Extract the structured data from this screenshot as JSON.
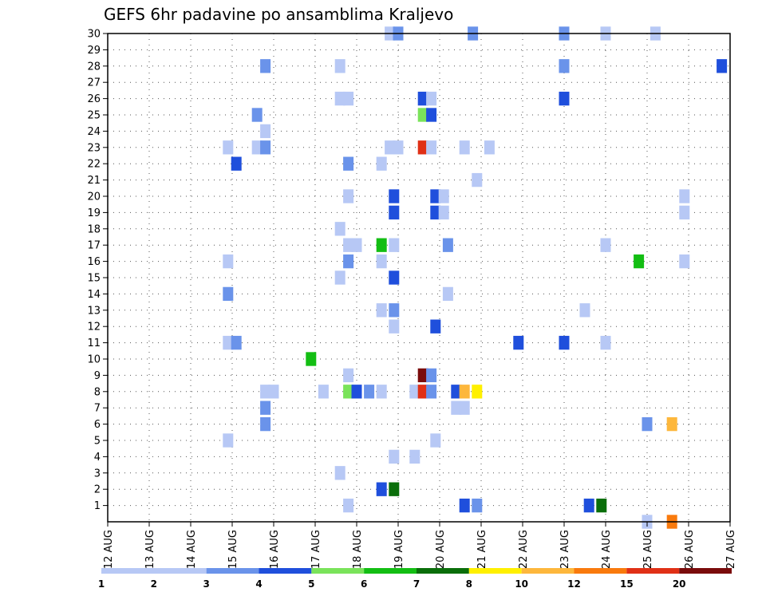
{
  "chart_data": {
    "type": "heatmap",
    "title": "GEFS 6hr padavine po ansamblima Kraljevo",
    "xlabel": "",
    "ylabel": "",
    "x_tick_labels": [
      "12 AUG",
      "13 AUG",
      "14 AUG",
      "15 AUG",
      "16 AUG",
      "17 AUG",
      "18 AUG",
      "19 AUG",
      "20 AUG",
      "21 AUG",
      "22 AUG",
      "23 AUG",
      "24 AUG",
      "25 AUG",
      "26 AUG",
      "27 AUG"
    ],
    "y_tick_labels": [
      "1",
      "2",
      "3",
      "4",
      "5",
      "6",
      "7",
      "8",
      "9",
      "10",
      "11",
      "12",
      "13",
      "14",
      "15",
      "16",
      "17",
      "18",
      "19",
      "20",
      "21",
      "22",
      "23",
      "24",
      "25",
      "26",
      "27",
      "28",
      "29",
      "30"
    ],
    "y_range": [
      0,
      30
    ],
    "x_range_days": [
      12,
      27
    ],
    "grid": true,
    "colorbar": {
      "colors": [
        "#b7c8f5",
        "#6a93ea",
        "#1f4fdc",
        "#7ae35a",
        "#13be13",
        "#0a6e0a",
        "#fff000",
        "#fdb73c",
        "#f97a0d",
        "#e03016",
        "#7a0b0b"
      ],
      "labels": [
        "1",
        "2",
        "3",
        "4",
        "5",
        "6",
        "7",
        "8",
        "10",
        "12",
        "15",
        "20"
      ]
    },
    "cells": [
      {
        "x": 18.8,
        "y": 30,
        "c": 0
      },
      {
        "x": 19.0,
        "y": 30,
        "c": 1
      },
      {
        "x": 20.8,
        "y": 30,
        "c": 1
      },
      {
        "x": 23.0,
        "y": 30,
        "c": 1
      },
      {
        "x": 24.0,
        "y": 30,
        "c": 0
      },
      {
        "x": 25.2,
        "y": 30,
        "c": 0
      },
      {
        "x": 15.8,
        "y": 28,
        "c": 1
      },
      {
        "x": 17.6,
        "y": 28,
        "c": 0
      },
      {
        "x": 23.0,
        "y": 28,
        "c": 1
      },
      {
        "x": 26.8,
        "y": 28,
        "c": 2
      },
      {
        "x": 17.6,
        "y": 26,
        "c": 0
      },
      {
        "x": 17.8,
        "y": 26,
        "c": 0
      },
      {
        "x": 19.6,
        "y": 26,
        "c": 2
      },
      {
        "x": 19.8,
        "y": 26,
        "c": 0
      },
      {
        "x": 23.0,
        "y": 26,
        "c": 2
      },
      {
        "x": 15.6,
        "y": 25,
        "c": 1
      },
      {
        "x": 19.6,
        "y": 25,
        "c": 3
      },
      {
        "x": 19.8,
        "y": 25,
        "c": 2
      },
      {
        "x": 15.8,
        "y": 24,
        "c": 0
      },
      {
        "x": 14.9,
        "y": 23,
        "c": 0
      },
      {
        "x": 15.6,
        "y": 23,
        "c": 0
      },
      {
        "x": 15.8,
        "y": 23,
        "c": 1
      },
      {
        "x": 18.8,
        "y": 23,
        "c": 0
      },
      {
        "x": 19.0,
        "y": 23,
        "c": 0
      },
      {
        "x": 19.6,
        "y": 23,
        "c": 9
      },
      {
        "x": 19.8,
        "y": 23,
        "c": 0
      },
      {
        "x": 20.6,
        "y": 23,
        "c": 0
      },
      {
        "x": 21.2,
        "y": 23,
        "c": 0
      },
      {
        "x": 15.1,
        "y": 22,
        "c": 2
      },
      {
        "x": 17.8,
        "y": 22,
        "c": 1
      },
      {
        "x": 18.6,
        "y": 22,
        "c": 0
      },
      {
        "x": 20.9,
        "y": 21,
        "c": 0
      },
      {
        "x": 17.8,
        "y": 20,
        "c": 0
      },
      {
        "x": 18.9,
        "y": 20,
        "c": 2
      },
      {
        "x": 19.9,
        "y": 20,
        "c": 2
      },
      {
        "x": 20.1,
        "y": 20,
        "c": 0
      },
      {
        "x": 25.9,
        "y": 20,
        "c": 0
      },
      {
        "x": 18.9,
        "y": 19,
        "c": 2
      },
      {
        "x": 19.9,
        "y": 19,
        "c": 2
      },
      {
        "x": 20.1,
        "y": 19,
        "c": 0
      },
      {
        "x": 25.9,
        "y": 19,
        "c": 0
      },
      {
        "x": 17.6,
        "y": 18,
        "c": 0
      },
      {
        "x": 17.8,
        "y": 17,
        "c": 0
      },
      {
        "x": 18.0,
        "y": 17,
        "c": 0
      },
      {
        "x": 18.6,
        "y": 17,
        "c": 4
      },
      {
        "x": 18.9,
        "y": 17,
        "c": 0
      },
      {
        "x": 20.2,
        "y": 17,
        "c": 1
      },
      {
        "x": 24.0,
        "y": 17,
        "c": 0
      },
      {
        "x": 14.9,
        "y": 16,
        "c": 0
      },
      {
        "x": 17.8,
        "y": 16,
        "c": 1
      },
      {
        "x": 18.6,
        "y": 16,
        "c": 0
      },
      {
        "x": 24.8,
        "y": 16,
        "c": 4
      },
      {
        "x": 25.9,
        "y": 16,
        "c": 0
      },
      {
        "x": 17.6,
        "y": 15,
        "c": 0
      },
      {
        "x": 18.9,
        "y": 15,
        "c": 2
      },
      {
        "x": 14.9,
        "y": 14,
        "c": 1
      },
      {
        "x": 20.2,
        "y": 14,
        "c": 0
      },
      {
        "x": 18.6,
        "y": 13,
        "c": 0
      },
      {
        "x": 18.9,
        "y": 13,
        "c": 1
      },
      {
        "x": 23.5,
        "y": 13,
        "c": 0
      },
      {
        "x": 18.9,
        "y": 12,
        "c": 0
      },
      {
        "x": 19.9,
        "y": 12,
        "c": 2
      },
      {
        "x": 14.9,
        "y": 11,
        "c": 0
      },
      {
        "x": 15.1,
        "y": 11,
        "c": 1
      },
      {
        "x": 21.9,
        "y": 11,
        "c": 2
      },
      {
        "x": 23.0,
        "y": 11,
        "c": 2
      },
      {
        "x": 24.0,
        "y": 11,
        "c": 0
      },
      {
        "x": 16.9,
        "y": 10,
        "c": 4
      },
      {
        "x": 17.8,
        "y": 9,
        "c": 0
      },
      {
        "x": 19.6,
        "y": 9,
        "c": 10
      },
      {
        "x": 19.8,
        "y": 9,
        "c": 1
      },
      {
        "x": 15.8,
        "y": 8,
        "c": 0
      },
      {
        "x": 16.0,
        "y": 8,
        "c": 0
      },
      {
        "x": 17.2,
        "y": 8,
        "c": 0
      },
      {
        "x": 17.8,
        "y": 8,
        "c": 3
      },
      {
        "x": 18.0,
        "y": 8,
        "c": 2
      },
      {
        "x": 18.3,
        "y": 8,
        "c": 1
      },
      {
        "x": 18.6,
        "y": 8,
        "c": 0
      },
      {
        "x": 19.4,
        "y": 8,
        "c": 0
      },
      {
        "x": 19.6,
        "y": 8,
        "c": 9
      },
      {
        "x": 19.8,
        "y": 8,
        "c": 1
      },
      {
        "x": 20.4,
        "y": 8,
        "c": 2
      },
      {
        "x": 20.6,
        "y": 8,
        "c": 7
      },
      {
        "x": 20.9,
        "y": 8,
        "c": 6
      },
      {
        "x": 15.8,
        "y": 7,
        "c": 1
      },
      {
        "x": 20.4,
        "y": 7,
        "c": 0
      },
      {
        "x": 20.6,
        "y": 7,
        "c": 0
      },
      {
        "x": 15.8,
        "y": 6,
        "c": 1
      },
      {
        "x": 25.0,
        "y": 6,
        "c": 1
      },
      {
        "x": 25.6,
        "y": 6,
        "c": 7
      },
      {
        "x": 14.9,
        "y": 5,
        "c": 0
      },
      {
        "x": 19.9,
        "y": 5,
        "c": 0
      },
      {
        "x": 18.9,
        "y": 4,
        "c": 0
      },
      {
        "x": 19.4,
        "y": 4,
        "c": 0
      },
      {
        "x": 17.6,
        "y": 3,
        "c": 0
      },
      {
        "x": 18.6,
        "y": 2,
        "c": 2
      },
      {
        "x": 18.9,
        "y": 2,
        "c": 5
      },
      {
        "x": 17.8,
        "y": 1,
        "c": 0
      },
      {
        "x": 20.6,
        "y": 1,
        "c": 2
      },
      {
        "x": 20.9,
        "y": 1,
        "c": 1
      },
      {
        "x": 23.6,
        "y": 1,
        "c": 2
      },
      {
        "x": 23.9,
        "y": 1,
        "c": 5
      },
      {
        "x": 25.0,
        "y": 0,
        "c": 0
      },
      {
        "x": 25.6,
        "y": 0,
        "c": 8
      }
    ]
  }
}
